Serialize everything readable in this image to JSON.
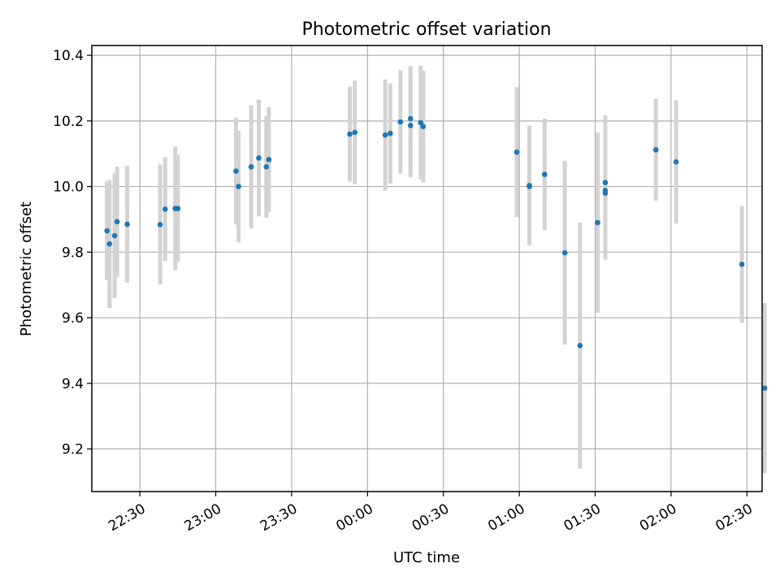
{
  "chart_data": {
    "type": "scatter",
    "title": "Photometric offset variation",
    "xlabel": "UTC time",
    "ylabel": "Photometric offset",
    "x_unit": "UTC time (HH:MM), times after midnight expressed as 24:xx–26:xx",
    "xticks": [
      {
        "time": "22:30",
        "label": "22:30"
      },
      {
        "time": "23:00",
        "label": "23:00"
      },
      {
        "time": "23:30",
        "label": "23:30"
      },
      {
        "time": "24:00",
        "label": "00:00"
      },
      {
        "time": "24:30",
        "label": "00:30"
      },
      {
        "time": "25:00",
        "label": "01:00"
      },
      {
        "time": "25:30",
        "label": "01:30"
      },
      {
        "time": "26:00",
        "label": "02:00"
      },
      {
        "time": "26:30",
        "label": "02:30"
      }
    ],
    "yticks": [
      9.2,
      9.4,
      9.6,
      9.8,
      10.0,
      10.2,
      10.4
    ],
    "xlim": [
      "22:11",
      "26:36"
    ],
    "ylim": [
      9.07,
      10.43
    ],
    "grid": true,
    "point_color": "#1f77b4",
    "errorbar_color": "#d3d3d3",
    "points": [
      {
        "x": "22:17",
        "y": 9.865,
        "err": 0.15
      },
      {
        "x": "22:18",
        "y": 9.825,
        "err": 0.195
      },
      {
        "x": "22:20",
        "y": 9.85,
        "err": 0.19
      },
      {
        "x": "22:21",
        "y": 9.893,
        "err": 0.168
      },
      {
        "x": "22:25",
        "y": 9.885,
        "err": 0.178
      },
      {
        "x": "22:38",
        "y": 9.884,
        "err": 0.183
      },
      {
        "x": "22:40",
        "y": 9.931,
        "err": 0.158
      },
      {
        "x": "22:44",
        "y": 9.933,
        "err": 0.188
      },
      {
        "x": "22:45",
        "y": 9.933,
        "err": 0.163
      },
      {
        "x": "23:08",
        "y": 10.047,
        "err": 0.163
      },
      {
        "x": "23:09",
        "y": 10.0,
        "err": 0.17
      },
      {
        "x": "23:14",
        "y": 10.06,
        "err": 0.188
      },
      {
        "x": "23:17",
        "y": 10.087,
        "err": 0.178
      },
      {
        "x": "23:20",
        "y": 10.06,
        "err": 0.155
      },
      {
        "x": "23:21",
        "y": 10.082,
        "err": 0.16
      },
      {
        "x": "23:53",
        "y": 10.16,
        "err": 0.145
      },
      {
        "x": "23:55",
        "y": 10.165,
        "err": 0.158
      },
      {
        "x": "24:07",
        "y": 10.157,
        "err": 0.17
      },
      {
        "x": "24:09",
        "y": 10.162,
        "err": 0.153
      },
      {
        "x": "24:13",
        "y": 10.197,
        "err": 0.158
      },
      {
        "x": "24:17",
        "y": 10.186,
        "err": 0.158
      },
      {
        "x": "24:17",
        "y": 10.207,
        "err": 0.16
      },
      {
        "x": "24:21",
        "y": 10.195,
        "err": 0.173
      },
      {
        "x": "24:22",
        "y": 10.183,
        "err": 0.17
      },
      {
        "x": "24:59",
        "y": 10.105,
        "err": 0.198
      },
      {
        "x": "25:04",
        "y": 10.003,
        "err": 0.183
      },
      {
        "x": "25:04",
        "y": 10.0,
        "err": 0.17
      },
      {
        "x": "25:10",
        "y": 10.037,
        "err": 0.17
      },
      {
        "x": "25:18",
        "y": 9.798,
        "err": 0.28
      },
      {
        "x": "25:24",
        "y": 9.515,
        "err": 0.375
      },
      {
        "x": "25:31",
        "y": 9.89,
        "err": 0.275
      },
      {
        "x": "25:34",
        "y": 9.98,
        "err": 0.203
      },
      {
        "x": "25:34",
        "y": 9.988,
        "err": 0.21
      },
      {
        "x": "25:34",
        "y": 10.012,
        "err": 0.205
      },
      {
        "x": "25:54",
        "y": 10.112,
        "err": 0.155
      },
      {
        "x": "26:02",
        "y": 10.075,
        "err": 0.188
      },
      {
        "x": "26:28",
        "y": 9.763,
        "err": 0.178
      },
      {
        "x": "26:37",
        "y": 9.385,
        "err": 0.26
      }
    ]
  }
}
